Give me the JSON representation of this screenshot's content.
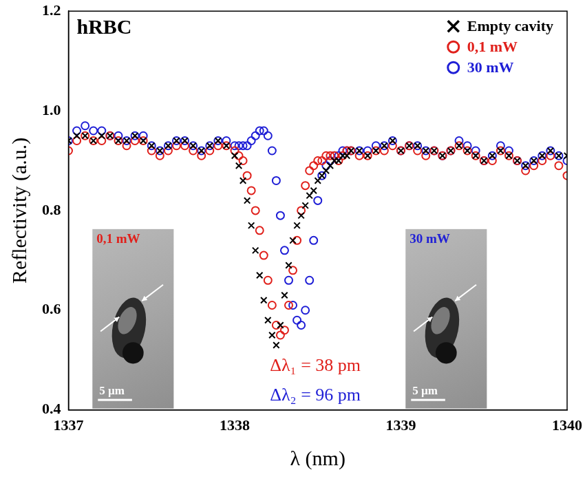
{
  "chart_data": {
    "type": "scatter",
    "title": "hRBC",
    "x_label": "λ (nm)",
    "y_label": "Reflectivity (a.u.)",
    "xlim": [
      1337,
      1340
    ],
    "xticks": [
      1337,
      1338,
      1339,
      1340
    ],
    "ylim": [
      0.4,
      1.2
    ],
    "yticks": [
      0.4,
      0.6,
      0.8,
      {
        "value": 1,
        "label": "1.0"
      },
      1.2
    ],
    "grid": false,
    "legend": "upper right",
    "x": [
      1337.0,
      1337.05,
      1337.1,
      1337.15,
      1337.2,
      1337.25,
      1337.3,
      1337.35,
      1337.4,
      1337.45,
      1337.5,
      1337.55,
      1337.6,
      1337.65,
      1337.7,
      1337.75,
      1337.8,
      1337.85,
      1337.9,
      1337.95,
      1338.0,
      1338.025,
      1338.05,
      1338.075,
      1338.1,
      1338.125,
      1338.15,
      1338.175,
      1338.2,
      1338.225,
      1338.25,
      1338.275,
      1338.3,
      1338.325,
      1338.35,
      1338.375,
      1338.4,
      1338.425,
      1338.45,
      1338.475,
      1338.5,
      1338.525,
      1338.55,
      1338.575,
      1338.6,
      1338.625,
      1338.65,
      1338.675,
      1338.7,
      1338.75,
      1338.8,
      1338.85,
      1338.9,
      1338.95,
      1339.0,
      1339.05,
      1339.1,
      1339.15,
      1339.2,
      1339.25,
      1339.3,
      1339.35,
      1339.4,
      1339.45,
      1339.5,
      1339.55,
      1339.6,
      1339.65,
      1339.7,
      1339.75,
      1339.8,
      1339.85,
      1339.9,
      1339.95,
      1340.0
    ],
    "series": [
      {
        "name": "Empty cavity",
        "color": "#000000",
        "marker": "x",
        "values": [
          0.94,
          0.95,
          0.95,
          0.94,
          0.95,
          0.95,
          0.94,
          0.94,
          0.95,
          0.94,
          0.93,
          0.92,
          0.93,
          0.94,
          0.94,
          0.93,
          0.92,
          0.93,
          0.94,
          0.93,
          0.91,
          0.89,
          0.86,
          0.82,
          0.77,
          0.72,
          0.67,
          0.62,
          0.58,
          0.55,
          0.53,
          0.57,
          0.63,
          0.69,
          0.74,
          0.77,
          0.79,
          0.81,
          0.83,
          0.84,
          0.86,
          0.87,
          0.88,
          0.89,
          0.9,
          0.9,
          0.91,
          0.91,
          0.92,
          0.92,
          0.91,
          0.92,
          0.93,
          0.94,
          0.92,
          0.93,
          0.93,
          0.92,
          0.92,
          0.91,
          0.92,
          0.93,
          0.92,
          0.91,
          0.9,
          0.91,
          0.92,
          0.91,
          0.9,
          0.89,
          0.9,
          0.91,
          0.92,
          0.91,
          0.91
        ]
      },
      {
        "name": "0,1 mW",
        "color": "#e0201b",
        "marker": "circle",
        "values": [
          0.92,
          0.94,
          0.95,
          0.94,
          0.94,
          0.95,
          0.94,
          0.93,
          0.94,
          0.94,
          0.92,
          0.91,
          0.92,
          0.93,
          0.93,
          0.92,
          0.91,
          0.92,
          0.93,
          0.93,
          0.92,
          0.91,
          0.9,
          0.87,
          0.84,
          0.8,
          0.76,
          0.71,
          0.66,
          0.61,
          0.57,
          0.55,
          0.56,
          0.61,
          0.68,
          0.74,
          0.8,
          0.85,
          0.88,
          0.89,
          0.9,
          0.9,
          0.91,
          0.91,
          0.91,
          0.9,
          0.91,
          0.92,
          0.92,
          0.91,
          0.91,
          0.92,
          0.92,
          0.93,
          0.92,
          0.93,
          0.92,
          0.91,
          0.92,
          0.91,
          0.92,
          0.93,
          0.92,
          0.91,
          0.9,
          0.9,
          0.92,
          0.91,
          0.9,
          0.88,
          0.89,
          0.9,
          0.91,
          0.89,
          0.87
        ]
      },
      {
        "name": "30 mW",
        "color": "#1f1fd6",
        "marker": "circle",
        "values": [
          0.94,
          0.96,
          0.97,
          0.96,
          0.96,
          0.95,
          0.95,
          0.94,
          0.95,
          0.95,
          0.93,
          0.92,
          0.93,
          0.94,
          0.94,
          0.93,
          0.92,
          0.93,
          0.94,
          0.94,
          0.93,
          0.93,
          0.93,
          0.93,
          0.94,
          0.95,
          0.96,
          0.96,
          0.95,
          0.92,
          0.86,
          0.79,
          0.72,
          0.66,
          0.61,
          0.58,
          0.57,
          0.6,
          0.66,
          0.74,
          0.82,
          0.87,
          0.89,
          0.9,
          0.91,
          0.91,
          0.92,
          0.92,
          0.92,
          0.92,
          0.92,
          0.93,
          0.93,
          0.94,
          0.92,
          0.93,
          0.93,
          0.92,
          0.92,
          0.91,
          0.92,
          0.94,
          0.93,
          0.92,
          0.9,
          0.91,
          0.93,
          0.92,
          0.9,
          0.89,
          0.9,
          0.91,
          0.92,
          0.91,
          0.9
        ]
      }
    ],
    "annotations": [
      {
        "text": "Δλ₁ = 38 pm",
        "color": "#e0201b"
      },
      {
        "text": "Δλ₂ = 96 pm",
        "color": "#1f1fd6"
      }
    ],
    "insets": [
      {
        "label": "0,1 mW",
        "color": "#e0201b",
        "scale_bar": "5 µm"
      },
      {
        "label": "30 mW",
        "color": "#1f1fd6",
        "scale_bar": "5 µm"
      }
    ]
  }
}
